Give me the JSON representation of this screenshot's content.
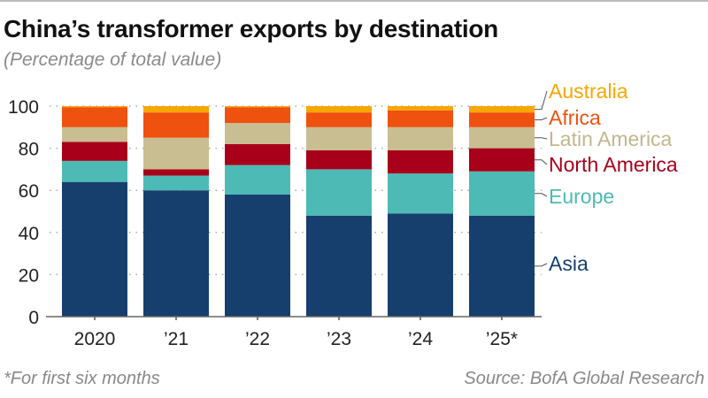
{
  "chart_data": {
    "type": "bar",
    "stacked": true,
    "title": "China’s transformer exports by destination",
    "subtitle": "(Percentage of total value)",
    "categories": [
      "2020",
      "’21",
      "’22",
      "’23",
      "’24",
      "’25*"
    ],
    "ylim": [
      0,
      100
    ],
    "yticks": [
      0,
      20,
      40,
      60,
      80,
      100
    ],
    "grid": true,
    "legend": "right",
    "series": [
      {
        "name": "Asia",
        "color": "#173f6e",
        "values": [
          64,
          60,
          58,
          48,
          49,
          48
        ]
      },
      {
        "name": "Europe",
        "color": "#4dbab5",
        "values": [
          10,
          7,
          14,
          22,
          19,
          21
        ]
      },
      {
        "name": "North America",
        "color": "#a8001a",
        "values": [
          9,
          3,
          10,
          9,
          11,
          11
        ]
      },
      {
        "name": "Latin America",
        "color": "#c9bd92",
        "values": [
          7,
          15,
          10,
          11,
          11,
          10
        ]
      },
      {
        "name": "Africa",
        "color": "#ef510f",
        "values": [
          9.5,
          12,
          7.5,
          7,
          8,
          7
        ]
      },
      {
        "name": "Australia",
        "color": "#f9a602",
        "values": [
          0.5,
          3,
          0.5,
          3,
          2,
          3
        ]
      }
    ],
    "note": "*For first six months",
    "source": "Source: BofA Global Research"
  }
}
